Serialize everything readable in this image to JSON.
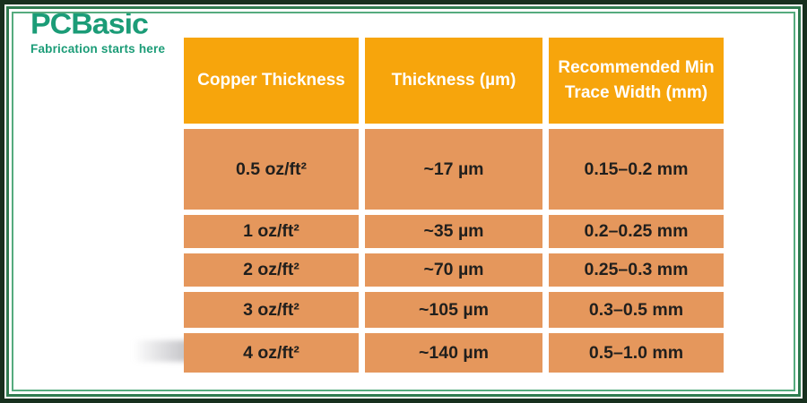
{
  "logo": {
    "brand": "PCBasic",
    "tagline": "Fabrication starts here"
  },
  "chart_data": {
    "type": "table",
    "columns": [
      "Copper Thickness",
      "Thickness (µm)",
      "Recommended Min Trace Width (mm)"
    ],
    "rows": [
      [
        "0.5 oz/ft²",
        "~17 µm",
        "0.15–0.2 mm"
      ],
      [
        "1 oz/ft²",
        "~35 µm",
        "0.2–0.25 mm"
      ],
      [
        "2 oz/ft²",
        "~70 µm",
        "0.25–0.3 mm"
      ],
      [
        "3 oz/ft²",
        "~105 µm",
        "0.3–0.5 mm"
      ],
      [
        "4 oz/ft²",
        "~140 µm",
        "0.5–1.0 mm"
      ]
    ]
  },
  "colors": {
    "header_bg": "#F7A50C",
    "header_text": "#FFFFFF",
    "cell_bg": "#E5975C",
    "cell_text": "#201F1D",
    "logo_green": "#1B9C77",
    "frame_dark": "#17301E",
    "frame_line_outer": "#2F7C50",
    "frame_line_inner": "#55AB7E",
    "background": "#FFFFFF"
  }
}
